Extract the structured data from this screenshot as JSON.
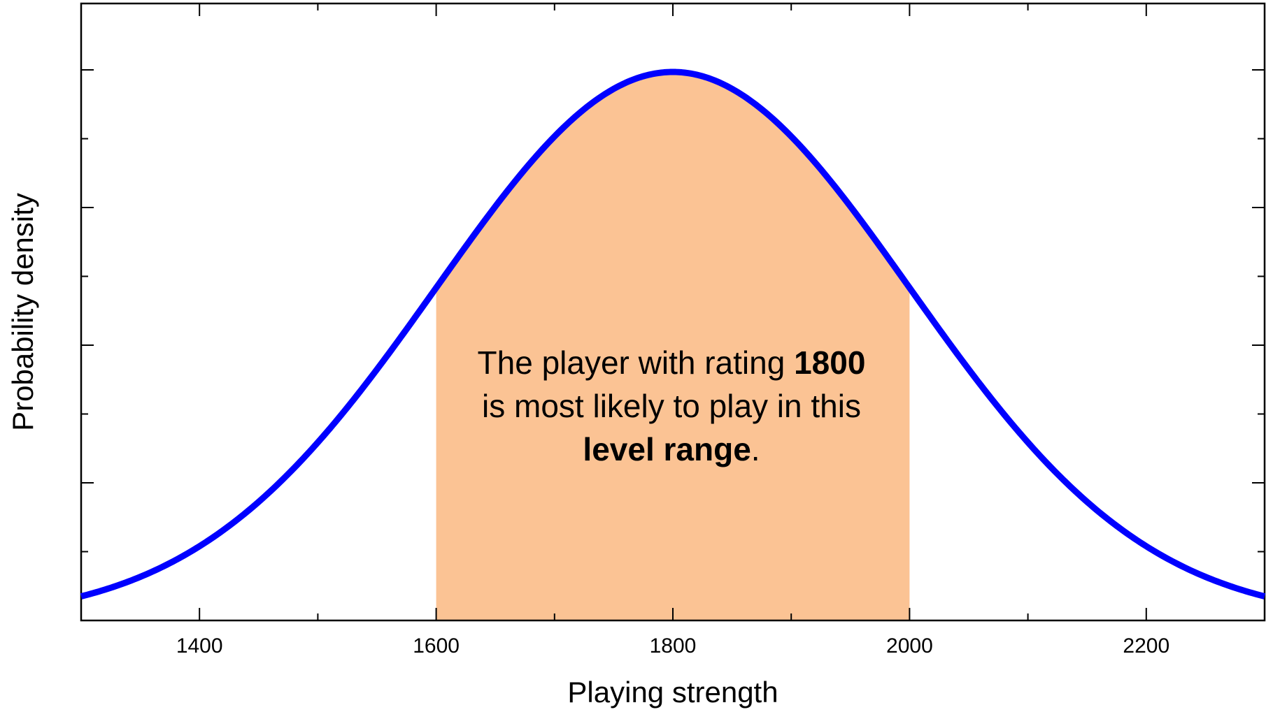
{
  "chart_data": {
    "type": "area",
    "title": "",
    "xlabel": "Playing strength",
    "ylabel": "Probability density",
    "xlim": [
      1300,
      2300
    ],
    "x_ticks": [
      1400,
      1600,
      1800,
      2000,
      2200
    ],
    "x_minor_step": 100,
    "y_tick_count": 8,
    "y_tick_labels_shown": false,
    "grid": false,
    "series": [
      {
        "distribution": "normal",
        "mean": 1800,
        "std_dev": 200,
        "color": "#0000ff"
      }
    ],
    "shaded_region": {
      "x_from": 1600,
      "x_to": 2000,
      "color": "#fbc394"
    },
    "annotation": {
      "line1_regular": "The player with rating ",
      "line1_bold": "1800",
      "line2": "is most likely to play in this",
      "line3_bold": "level range",
      "line3_end": "."
    }
  }
}
